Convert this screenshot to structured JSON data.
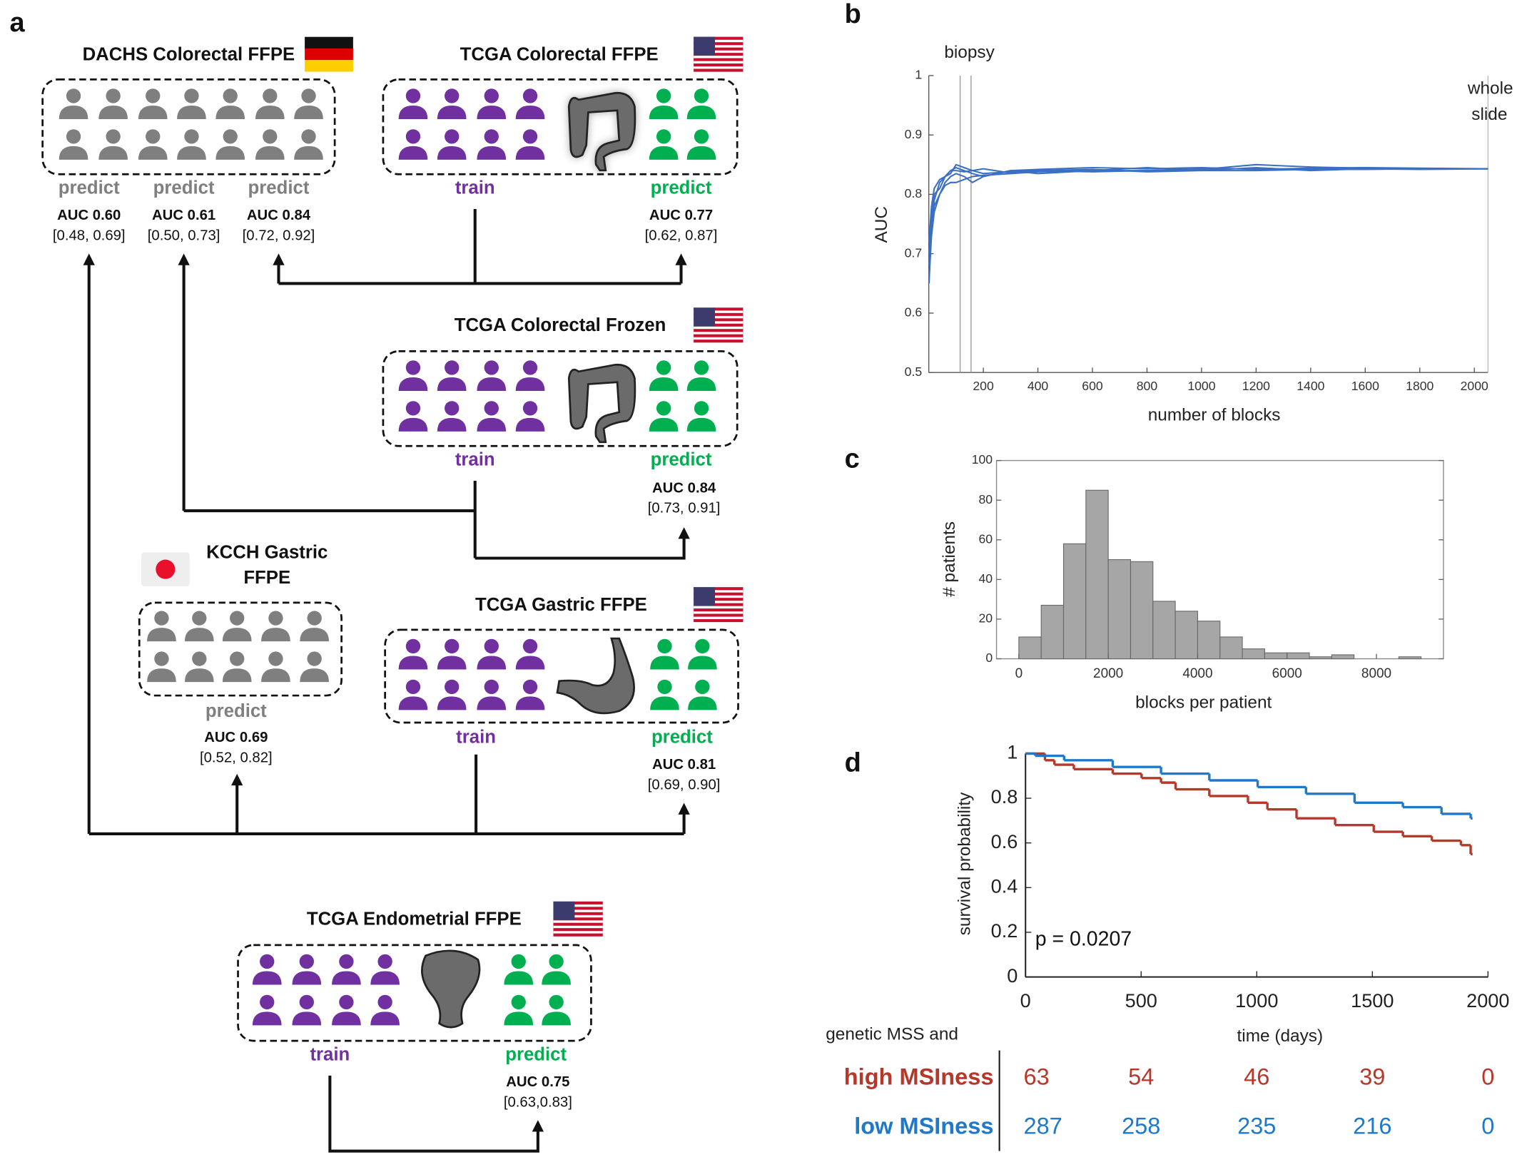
{
  "panel_labels": [
    "a",
    "b",
    "c",
    "d"
  ],
  "cohorts": [
    {
      "title": [
        "DACHS Colorectal FFPE"
      ],
      "labels": [
        "predict",
        "predict",
        "predict"
      ],
      "results": [
        {
          "auc": "AUC 0.60",
          "ci": "[0.48, 0.69]"
        },
        {
          "auc": "AUC 0.61",
          "ci": "[0.50, 0.73]"
        },
        {
          "auc": "AUC 0.84",
          "ci": "[0.72, 0.92]"
        }
      ]
    },
    {
      "title": [
        "TCGA Colorectal FFPE"
      ],
      "labels": [
        "train",
        "predict"
      ],
      "results": [
        {
          "auc": "AUC 0.77",
          "ci": "[0.62, 0.87]"
        }
      ]
    },
    {
      "title": [
        "TCGA Colorectal Frozen"
      ],
      "labels": [
        "train",
        "predict"
      ],
      "results": [
        {
          "auc": "AUC 0.84",
          "ci": "[0.73, 0.91]"
        }
      ]
    },
    {
      "title": [
        "KCCH Gastric",
        "FFPE"
      ],
      "labels": [
        "predict"
      ],
      "results": [
        {
          "auc": "AUC 0.69",
          "ci": "[0.52, 0.82]"
        }
      ]
    },
    {
      "title": [
        "TCGA Gastric FFPE"
      ],
      "labels": [
        "train",
        "predict"
      ],
      "results": [
        {
          "auc": "AUC 0.81",
          "ci": "[0.69, 0.90]"
        }
      ]
    },
    {
      "title": [
        "TCGA Endometrial FFPE"
      ],
      "labels": [
        "train",
        "predict"
      ],
      "results": [
        {
          "auc": "AUC 0.75",
          "ci": "[0.63,0.83]"
        }
      ]
    }
  ],
  "chart_data": [
    {
      "type": "line",
      "xlabel": "number of blocks",
      "ylabel": "AUC",
      "annotations": [
        "biopsy",
        "whole",
        "slide"
      ],
      "vlines": [
        115,
        155
      ],
      "x": [
        1,
        10,
        20,
        40,
        60,
        80,
        100,
        130,
        160,
        200,
        300,
        400,
        600,
        800,
        1000,
        1200,
        1400,
        1600,
        1800,
        2050
      ],
      "series": [
        {
          "color": "#3a6fc4",
          "values": [
            0.65,
            0.74,
            0.79,
            0.82,
            0.83,
            0.84,
            0.845,
            0.84,
            0.835,
            0.83,
            0.84,
            0.835,
            0.84,
            0.845,
            0.84,
            0.845,
            0.84,
            0.843,
            0.842,
            0.843
          ]
        },
        {
          "color": "#3a6fc4",
          "values": [
            0.68,
            0.76,
            0.8,
            0.81,
            0.83,
            0.835,
            0.85,
            0.845,
            0.84,
            0.835,
            0.838,
            0.84,
            0.838,
            0.84,
            0.842,
            0.85,
            0.846,
            0.844,
            0.843,
            0.843
          ]
        },
        {
          "color": "#3a6fc4",
          "values": [
            0.7,
            0.75,
            0.78,
            0.8,
            0.82,
            0.83,
            0.835,
            0.83,
            0.82,
            0.83,
            0.84,
            0.842,
            0.845,
            0.843,
            0.845,
            0.842,
            0.844,
            0.845,
            0.844,
            0.843
          ]
        },
        {
          "color": "#3a6fc4",
          "values": [
            0.66,
            0.73,
            0.77,
            0.8,
            0.815,
            0.82,
            0.82,
            0.825,
            0.83,
            0.832,
            0.835,
            0.838,
            0.84,
            0.84,
            0.843,
            0.843,
            0.842,
            0.843,
            0.843,
            0.843
          ]
        },
        {
          "color": "#3a6fc4",
          "values": [
            0.72,
            0.78,
            0.81,
            0.825,
            0.83,
            0.84,
            0.84,
            0.838,
            0.84,
            0.843,
            0.836,
            0.84,
            0.842,
            0.838,
            0.84,
            0.84,
            0.842,
            0.842,
            0.843,
            0.843
          ]
        }
      ],
      "xlim": [
        0,
        2050
      ],
      "xticks": [
        200,
        400,
        600,
        800,
        1000,
        1200,
        1400,
        1600,
        1800,
        2000
      ],
      "ylim": [
        0.5,
        1
      ],
      "yticks": [
        0.5,
        0.6,
        0.7,
        0.8,
        0.9,
        1
      ]
    },
    {
      "type": "histogram",
      "xlabel": "blocks per patient",
      "ylabel": "# patients",
      "color": "#a6a6a6",
      "bins": [
        0,
        500,
        1000,
        1500,
        2000,
        2500,
        3000,
        3500,
        4000,
        4500,
        5000,
        5500,
        6000,
        6500,
        7000,
        7500,
        8000,
        8500,
        9000
      ],
      "counts": [
        11,
        27,
        58,
        85,
        50,
        49,
        29,
        24,
        19,
        11,
        5,
        3,
        3,
        1,
        2,
        0,
        0,
        1
      ],
      "xlim": [
        -500,
        9500
      ],
      "xticks": [
        0,
        2000,
        4000,
        6000,
        8000
      ],
      "ylim": [
        0,
        100
      ],
      "yticks": [
        0,
        20,
        40,
        60,
        80,
        100
      ]
    },
    {
      "type": "survival",
      "xlabel": "time (days)",
      "ylabel": "survival probability",
      "annotation": "p = 0.0207",
      "series": [
        {
          "name": "high MSIness",
          "color": "#b5382a",
          "x": [
            0,
            84,
            125,
            209,
            377,
            502,
            586,
            649,
            795,
            962,
            1046,
            1172,
            1339,
            1506,
            1632,
            1757,
            1883,
            1925
          ],
          "values": [
            1,
            0.97,
            0.95,
            0.93,
            0.91,
            0.89,
            0.87,
            0.84,
            0.81,
            0.78,
            0.75,
            0.71,
            0.68,
            0.65,
            0.63,
            0.61,
            0.59,
            0.55
          ]
        },
        {
          "name": "low MSIness",
          "color": "#1f78c8",
          "x": [
            0,
            42,
            167,
            377,
            586,
            795,
            1004,
            1213,
            1423,
            1632,
            1799,
            1925
          ],
          "values": [
            1,
            0.99,
            0.97,
            0.94,
            0.91,
            0.88,
            0.85,
            0.82,
            0.78,
            0.76,
            0.73,
            0.71
          ]
        }
      ],
      "xlim": [
        0,
        2000
      ],
      "xticks": [
        0,
        500,
        1000,
        1500,
        2000
      ],
      "ylim": [
        0,
        1
      ],
      "yticks": [
        0,
        0.2,
        0.4,
        0.6,
        0.8,
        1
      ],
      "risk_table": {
        "title": "genetic MSS and",
        "rows": [
          [
            63,
            54,
            46,
            39,
            0
          ],
          [
            287,
            258,
            235,
            216,
            0
          ]
        ]
      }
    }
  ]
}
